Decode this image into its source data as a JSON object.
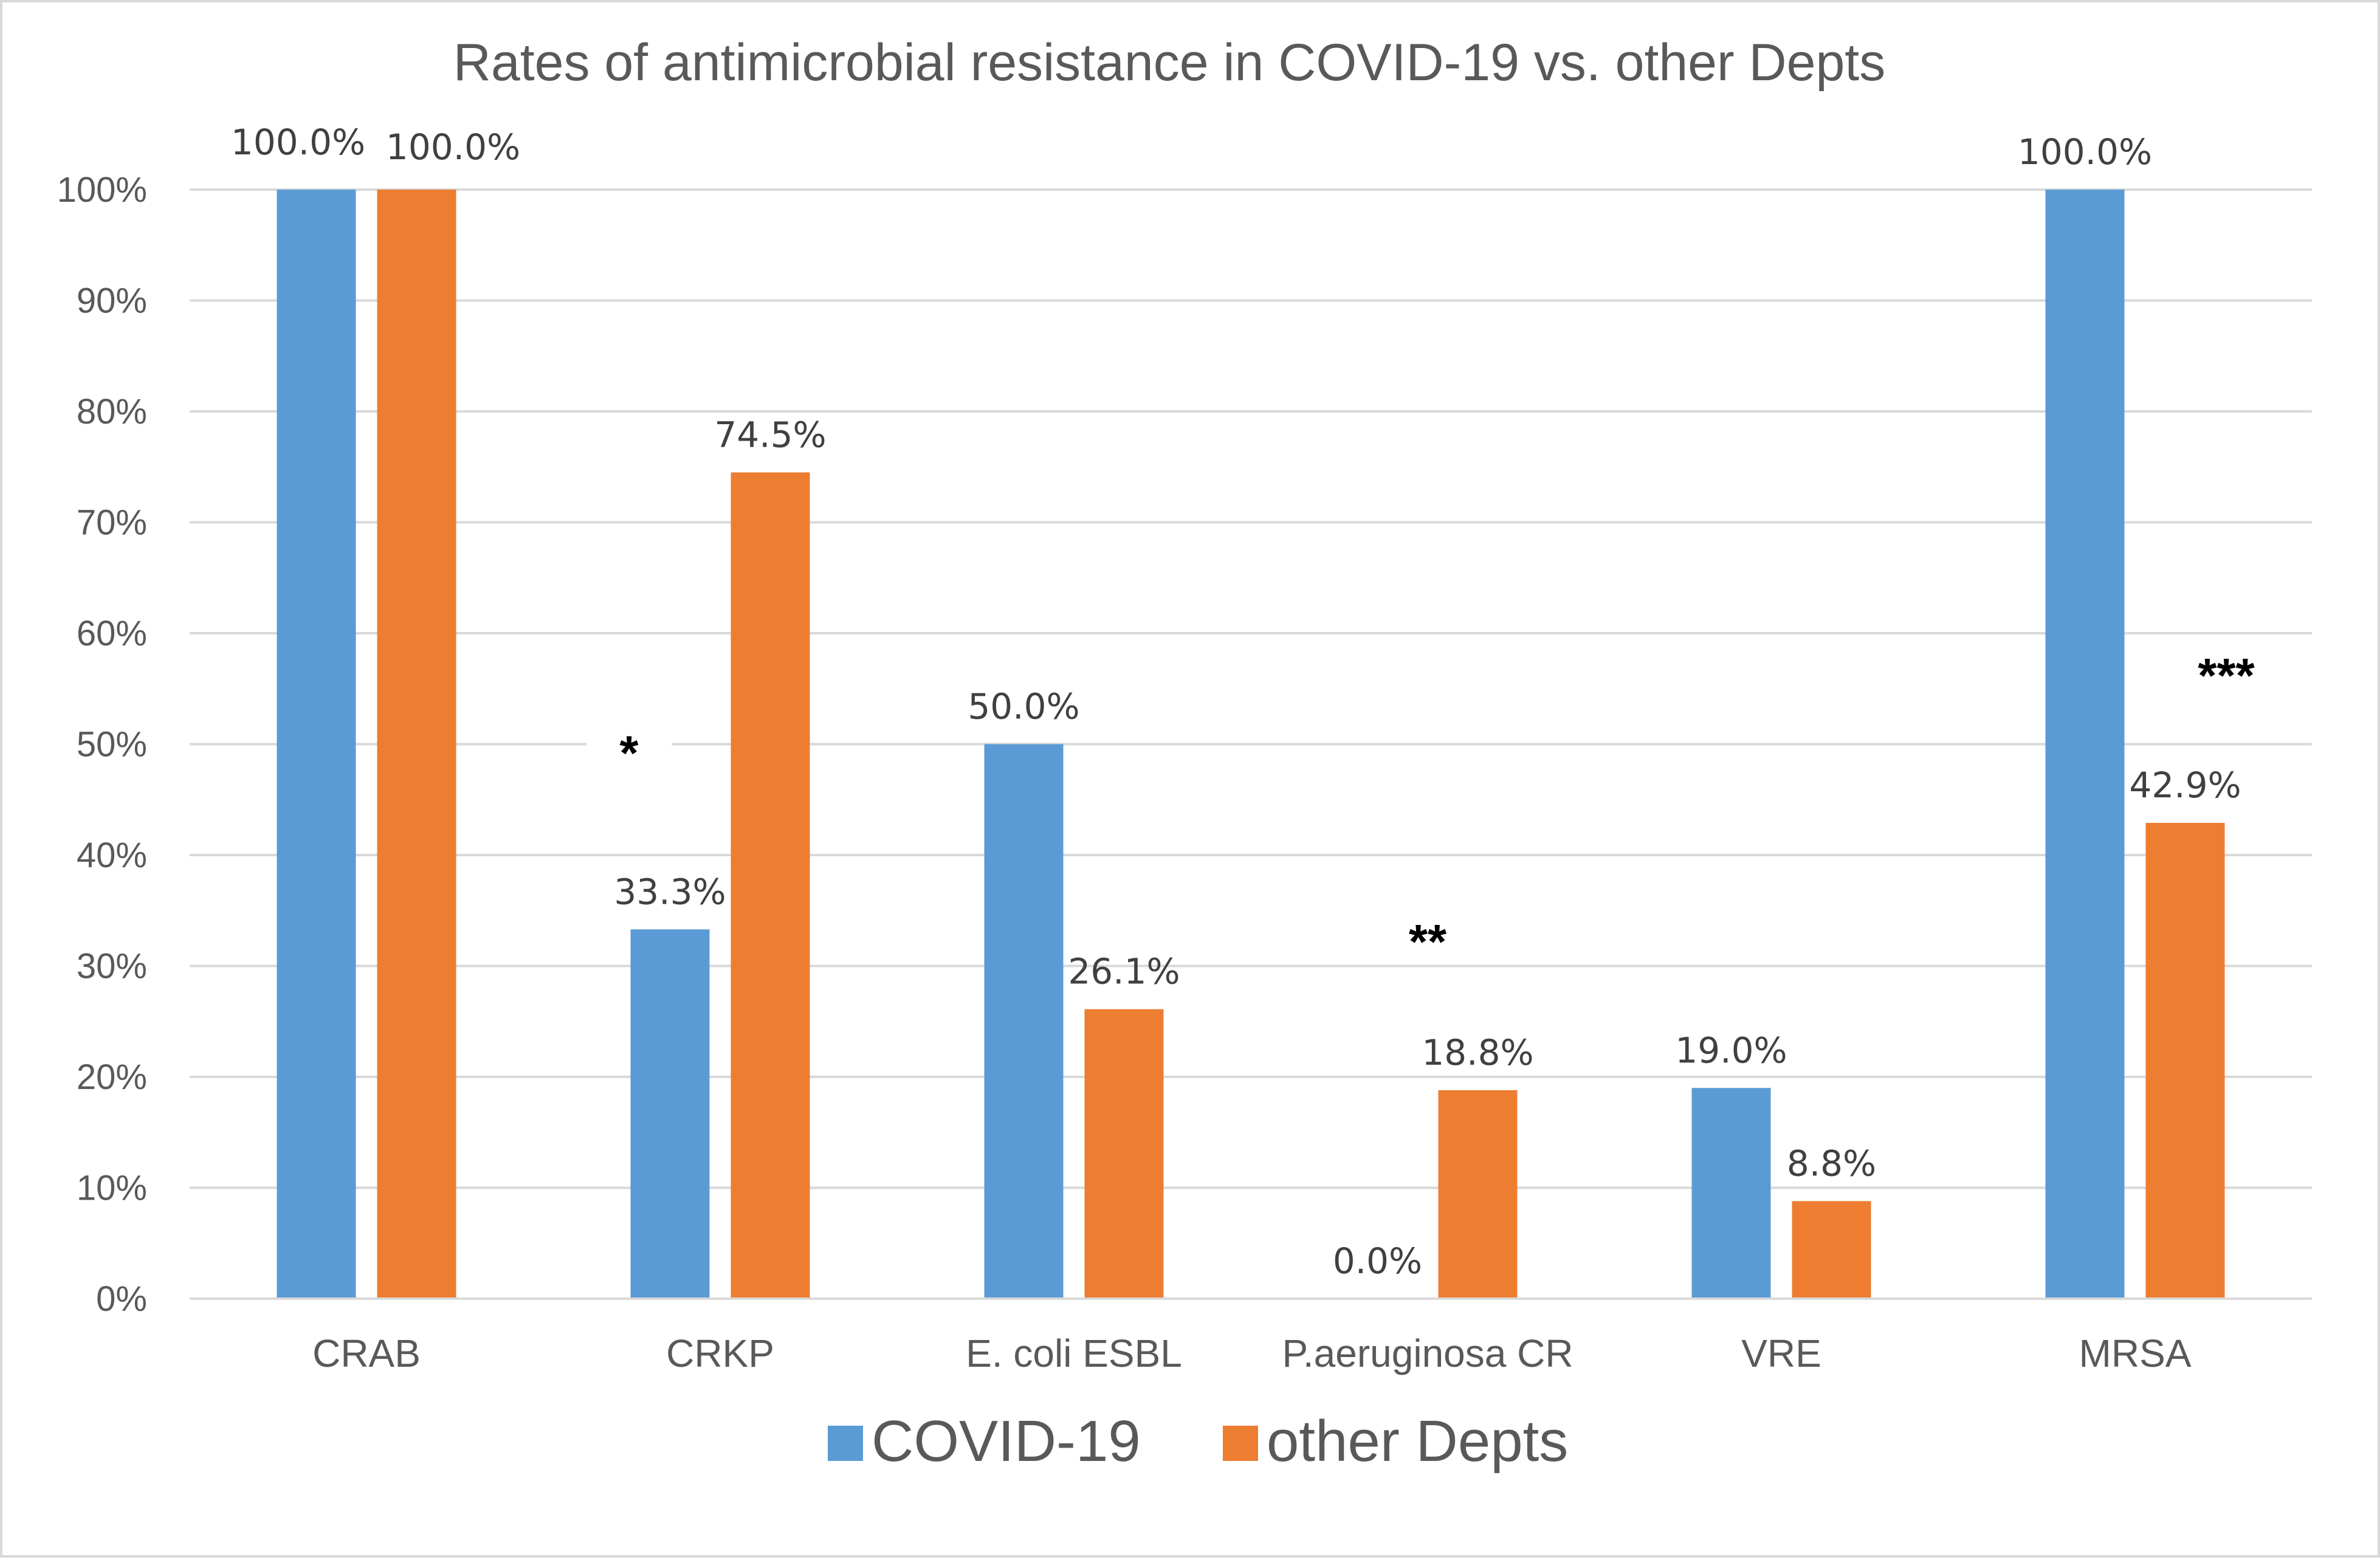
{
  "chart_data": {
    "type": "bar",
    "title": "Rates of antimicrobial resistance in COVID-19 vs. other Depts",
    "xlabel": "",
    "ylabel": "",
    "ylim": [
      0,
      100
    ],
    "grid": true,
    "legend_position": "bottom",
    "categories": [
      "CRAB",
      "CRKP",
      "E. coli ESBL",
      "P.aeruginosa CR",
      "VRE",
      "MRSA"
    ],
    "y_ticks": [
      0,
      10,
      20,
      30,
      40,
      50,
      60,
      70,
      80,
      90,
      100
    ],
    "y_tick_labels": [
      "0%",
      "10%",
      "20%",
      "30%",
      "40%",
      "50%",
      "60%",
      "70%",
      "80%",
      "90%",
      "100%"
    ],
    "series": [
      {
        "name": "COVID-19",
        "color": "#5b9bd5",
        "values": [
          100.0,
          33.3,
          50.0,
          0.0,
          19.0,
          100.0
        ],
        "labels": [
          "",
          "33.3%",
          "50.0%",
          "0.0%",
          "19.0%",
          "100.0%"
        ]
      },
      {
        "name": "other Depts",
        "color": "#ed7d31",
        "values": [
          100.0,
          74.5,
          26.1,
          18.8,
          8.8,
          42.9
        ],
        "labels": [
          "",
          "74.5%",
          "26.1%",
          "18.8%",
          "8.8%",
          "42.9%"
        ]
      }
    ],
    "annotations": [
      {
        "text": "*",
        "category": "CRKP",
        "y": 50
      },
      {
        "text": "**",
        "category": "P.aeruginosa CR",
        "y": 33
      },
      {
        "text": "***",
        "category": "MRSA",
        "y": 57
      },
      {
        "text": "100.0%",
        "category": "CRAB",
        "y": 104.5
      },
      {
        "text": "100.0%",
        "category": "CRAB",
        "y": 104.3
      }
    ]
  }
}
